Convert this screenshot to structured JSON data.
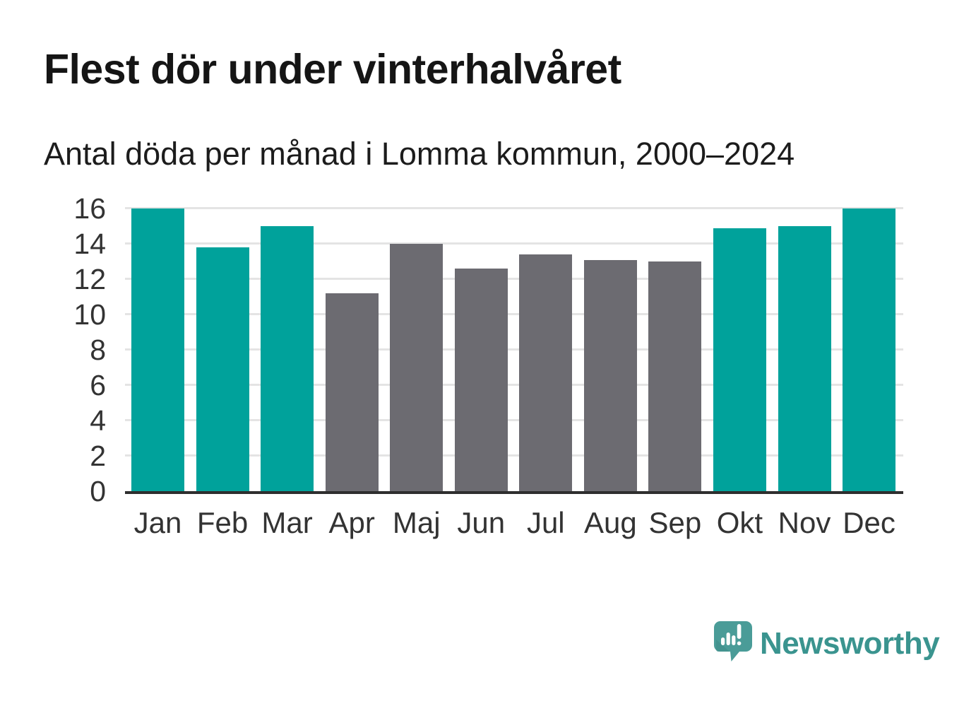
{
  "header": {
    "title": "Flest dör under vinterhalvåret",
    "subtitle": "Antal döda per månad i Lomma kommun, 2000–2024"
  },
  "chart_data": {
    "type": "bar",
    "title": "Flest dör under vinterhalvåret",
    "subtitle": "Antal döda per månad i Lomma kommun, 2000–2024",
    "categories": [
      "Jan",
      "Feb",
      "Mar",
      "Apr",
      "Maj",
      "Jun",
      "Jul",
      "Aug",
      "Sep",
      "Okt",
      "Nov",
      "Dec"
    ],
    "values": [
      16.0,
      13.8,
      15.0,
      11.2,
      14.0,
      12.6,
      13.4,
      13.1,
      13.0,
      14.9,
      15.0,
      16.0
    ],
    "bar_colors": [
      "#00a29b",
      "#00a29b",
      "#00a29b",
      "#6c6b71",
      "#6c6b71",
      "#6c6b71",
      "#6c6b71",
      "#6c6b71",
      "#6c6b71",
      "#00a29b",
      "#00a29b",
      "#00a29b"
    ],
    "xlabel": "",
    "ylabel": "",
    "ylim": [
      0,
      16
    ],
    "yticks": [
      0,
      2,
      4,
      6,
      8,
      10,
      12,
      14,
      16
    ],
    "grid": "horizontal",
    "legend": "none",
    "winter_color": "#00a29b",
    "summer_color": "#6c6b71"
  },
  "footer": {
    "brand": "Newsworthy"
  },
  "colors": {
    "accent_teal": "#00a29b",
    "neutral_gray": "#6c6b71",
    "gridline": "#e4e4e4",
    "axis": "#2e2e2e",
    "tick_text": "#333333",
    "logo_teal": "#4a9c98",
    "brand_text": "#3a948f"
  }
}
